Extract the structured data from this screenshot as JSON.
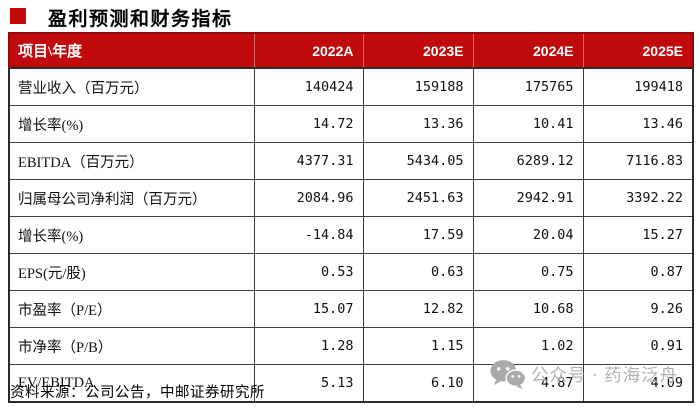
{
  "title": {
    "text": "盈利预测和财务指标",
    "bullet_color": "#c00a0c"
  },
  "table": {
    "header": [
      "项目\\年度",
      "2022A",
      "2023E",
      "2024E",
      "2025E"
    ],
    "header_bg": "#c00a0c",
    "header_text_color": "#ffffff",
    "rows": [
      {
        "label": "营业收入（百万元）",
        "values": [
          "140424",
          "159188",
          "175765",
          "199418"
        ]
      },
      {
        "label": "增长率(%)",
        "values": [
          "14.72",
          "13.36",
          "10.41",
          "13.46"
        ]
      },
      {
        "label": "EBITDA（百万元）",
        "values": [
          "4377.31",
          "5434.05",
          "6289.12",
          "7116.83"
        ]
      },
      {
        "label": "归属母公司净利润（百万元）",
        "values": [
          "2084.96",
          "2451.63",
          "2942.91",
          "3392.22"
        ]
      },
      {
        "label": "增长率(%)",
        "values": [
          "-14.84",
          "17.59",
          "20.04",
          "15.27"
        ]
      },
      {
        "label": "EPS(元/股)",
        "values": [
          "0.53",
          "0.63",
          "0.75",
          "0.87"
        ]
      },
      {
        "label": "市盈率（P/E）",
        "values": [
          "15.07",
          "12.82",
          "10.68",
          "9.26"
        ]
      },
      {
        "label": "市净率（P/B）",
        "values": [
          "1.28",
          "1.15",
          "1.02",
          "0.91"
        ]
      },
      {
        "label": "EV/EBITDA",
        "values": [
          "5.13",
          "6.10",
          "4.87",
          "4.09"
        ]
      }
    ]
  },
  "source_note": "资料来源：公司公告，中邮证券研究所",
  "watermark": {
    "icon": "wechat-icon",
    "text": "公众号 · 药海泛舟",
    "color": "#b2b2b2"
  }
}
